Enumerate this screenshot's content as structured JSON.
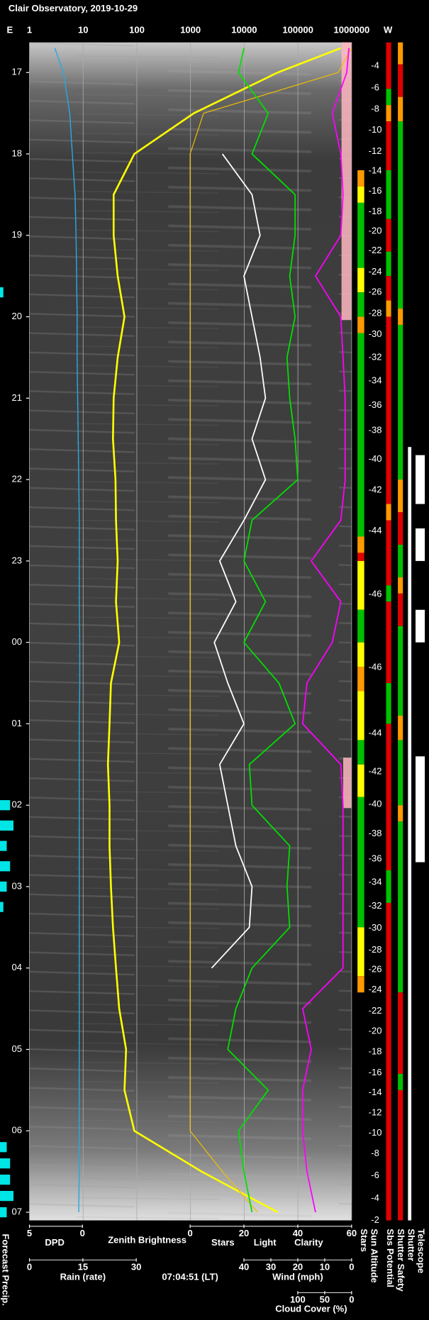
{
  "chart_data": {
    "type": "line",
    "title": "Clair Observatory, 2019-10-29",
    "left_label": "E",
    "right_label": "W",
    "timestamp": "07:04:51 (LT)",
    "xlim": [
      16.63,
      31.1
    ],
    "xticks": [
      17,
      18,
      19,
      {
        "value": 20,
        "label": "20"
      },
      21,
      22,
      23,
      {
        "value": 24,
        "label": "00"
      },
      {
        "value": 25,
        "label": "01"
      },
      {
        "value": 26,
        "label": "02"
      },
      {
        "value": 27,
        "label": "03"
      },
      {
        "value": 28,
        "label": "04"
      },
      {
        "value": 29,
        "label": "05"
      },
      {
        "value": 30,
        "label": "06"
      },
      {
        "value": 31,
        "label": "07"
      }
    ],
    "grid": true,
    "axes": [
      {
        "log": true,
        "lim": [
          1,
          1000000
        ],
        "ticks": [
          1,
          10,
          100,
          1000,
          10000,
          100000,
          1000000
        ]
      },
      {
        "lim": [
          5,
          0
        ],
        "ticks": [
          5,
          0
        ]
      },
      {
        "lim": [
          0,
          60
        ],
        "ticks": [
          0,
          20,
          40,
          60
        ]
      },
      {
        "label": "Rain (rate)",
        "color": "#29a8e0",
        "lim": [
          0,
          30
        ],
        "ticks": [
          0,
          15,
          30
        ]
      },
      {
        "label": "Wind (mph)",
        "color": "#ff9fb0",
        "lim": [
          40,
          0
        ],
        "ticks": [
          40,
          30,
          20,
          10,
          0
        ]
      },
      {
        "lim": [
          100,
          0
        ],
        "ticks": [
          100,
          50,
          0
        ]
      }
    ],
    "x": [
      16.7,
      17,
      17.5,
      18,
      18.5,
      19,
      19.5,
      20,
      20.5,
      21,
      21.5,
      22,
      22.5,
      23,
      23.5,
      24,
      24.5,
      25,
      25.5,
      26,
      26.5,
      27,
      27.5,
      28,
      28.5,
      29,
      29.5,
      30,
      30.5,
      31
    ],
    "series": [
      {
        "name": "DPD",
        "color": "#29a8e0",
        "axis": 1,
        "values": [
          2.6,
          1.8,
          1.2,
          0.95,
          0.7,
          0.6,
          0.55,
          0.5,
          0.5,
          0.45,
          0.4,
          0.35,
          0.3,
          0.3,
          0.3,
          0.25,
          0.25,
          0.3,
          0.3,
          0.3,
          0.3,
          0.3,
          0.3,
          0.3,
          0.3,
          0.3,
          0.3,
          0.3,
          0.3,
          0.35
        ]
      },
      {
        "name": "Zenith Brightness",
        "color": "#ffff00",
        "axis": 0,
        "values": [
          630000,
          42000,
          1150,
          90,
          37,
          37,
          44,
          59,
          44,
          37,
          36,
          40,
          41,
          44,
          41,
          47,
          33,
          31,
          29,
          31,
          31,
          33,
          36,
          41,
          47,
          63,
          59,
          90,
          1600,
          42000
        ]
      },
      {
        "name": "Stars",
        "color": "#ffffff",
        "axis": 2,
        "values": [
          null,
          null,
          null,
          12,
          23,
          26,
          20,
          23,
          26,
          28,
          23,
          28,
          20,
          11,
          17,
          9,
          14,
          20,
          11,
          14,
          17,
          23,
          22,
          8,
          null,
          null,
          null,
          null,
          null,
          null
        ]
      },
      {
        "name": "Light",
        "color": "#f0c000",
        "axis": 2,
        "values": [
          60,
          55,
          5,
          0,
          0,
          0,
          0,
          0,
          0,
          0,
          0,
          0,
          0,
          0,
          0,
          0,
          0,
          0,
          0,
          0,
          0,
          0,
          0,
          0,
          0,
          0,
          0,
          0,
          12,
          25
        ]
      },
      {
        "name": "Clarity",
        "color": "#00e000",
        "axis": 2,
        "values": [
          20,
          18,
          29,
          23,
          39,
          39,
          37,
          39,
          36,
          37,
          39,
          40,
          23,
          20,
          28,
          20,
          33,
          39,
          22,
          23,
          37,
          36,
          37,
          23,
          17,
          14,
          29,
          18,
          20,
          23
        ]
      },
      {
        "name": "Cloud Cover (%)",
        "color": "#ff00ff",
        "axis": 5,
        "values": [
          5,
          9,
          36,
          20,
          16,
          20,
          67,
          20,
          16,
          12,
          12,
          12,
          20,
          75,
          20,
          36,
          83,
          91,
          20,
          16,
          16,
          16,
          16,
          16,
          91,
          75,
          91,
          91,
          83,
          67
        ]
      }
    ],
    "precip": {
      "name": "Forecast Precip.",
      "color": "#00e5e5",
      "lim": [
        0,
        4
      ],
      "x": [
        19.7,
        26,
        26.25,
        26.5,
        26.75,
        27,
        27.25,
        30.2,
        30.4,
        30.6,
        30.8,
        31
      ],
      "values": [
        1,
        3,
        4,
        2,
        3,
        2,
        1,
        2,
        3,
        3,
        4,
        2
      ]
    },
    "sun_altitude": {
      "name": "Sun Altitude",
      "x": [
        16.92,
        17.19,
        17.45,
        17.71,
        17.97,
        18.21,
        18.46,
        18.71,
        18.95,
        19.19,
        19.45,
        19.7,
        19.96,
        20.22,
        20.5,
        20.79,
        21.09,
        21.4,
        21.75,
        22.13,
        22.63,
        23.41,
        24.31,
        25.12,
        25.59,
        25.99,
        26.35,
        26.66,
        26.95,
        27.24,
        27.51,
        27.78,
        28.02,
        28.27,
        28.53,
        28.78,
        29.03,
        29.29,
        29.53,
        29.78,
        30.03,
        30.28,
        30.55,
        30.83,
        31.1
      ],
      "values": [
        -4,
        -6,
        -8,
        -10,
        -12,
        -14,
        -16,
        -18,
        -20,
        -22,
        -24,
        -26,
        -28,
        -30,
        -32,
        -34,
        -36,
        -38,
        -40,
        -42,
        -44,
        -46,
        -46,
        -44,
        -42,
        -40,
        -38,
        -36,
        -34,
        -32,
        -30,
        -28,
        -26,
        -24,
        -22,
        -20,
        -18,
        -16,
        -14,
        -12,
        -10,
        -8,
        -6,
        -4,
        -2
      ]
    },
    "strips": [
      {
        "name": "Stars",
        "x": [
          18.2,
          18.4,
          18.6,
          19.4,
          19.7,
          20.0,
          20.2,
          22.7,
          22.9,
          23.0,
          23.6,
          24.0,
          24.3,
          24.6,
          25.2,
          25.5,
          25.9,
          27.5,
          28.1,
          28.3
        ],
        "colors": [
          "#ff9900",
          "#ffff00",
          "#00c000",
          "#ffff00",
          "#00c000",
          "#ff9900",
          "#00c000",
          "#ff9900",
          "#e00000",
          "#ffff00",
          "#00c000",
          "#ffff00",
          "#ff9900",
          "#ffff00",
          "#00c000",
          "#ffff00",
          "#00c000",
          "#ffff00",
          "#ff9900"
        ]
      },
      {
        "name": "Sbs Potential",
        "x": [
          16.63,
          17.2,
          17.4,
          17.6,
          18.2,
          18.8,
          19.2,
          19.5,
          19.8,
          20.0,
          22.3,
          22.5,
          23.3,
          23.5,
          24.5,
          25.0,
          26.8,
          27.2,
          31.1
        ],
        "colors": [
          "#e00000",
          "#00c000",
          "#ff9900",
          "#e00000",
          "#00c000",
          "#e00000",
          "#00c000",
          "#e00000",
          "#ff9900",
          "#e00000",
          "#ff9900",
          "#e00000",
          "#00c000",
          "#e00000",
          "#00c000",
          "#e00000",
          "#00c000",
          "#e00000"
        ]
      },
      {
        "name": "Shutter Safety",
        "x": [
          16.63,
          16.9,
          17.3,
          17.6,
          19.9,
          20.1,
          22.0,
          22.4,
          22.8,
          23.2,
          23.4,
          23.8,
          24.9,
          25.2,
          26.0,
          26.2,
          28.3,
          29.3,
          29.5,
          31.1
        ],
        "colors": [
          "#ff9900",
          "#e00000",
          "#ff9900",
          "#00c000",
          "#ff9900",
          "#00c000",
          "#ff9900",
          "#e00000",
          "#00c000",
          "#ff9900",
          "#e00000",
          "#00c000",
          "#ff9900",
          "#00c000",
          "#ff9900",
          "#00c000",
          "#e00000",
          "#00c000",
          "#e00000"
        ]
      },
      {
        "name": "Shutter",
        "x": [
          21.6,
          31.1
        ],
        "colors": [
          "#ffffff"
        ]
      },
      {
        "name": "Telescope",
        "x": [
          21.7,
          22.3,
          22.6,
          23.0,
          23.6,
          24.0,
          25.4,
          26.7
        ],
        "colors": [
          "#ffffff",
          null,
          "#ffffff",
          null,
          "#ffffff",
          null,
          "#ffffff"
        ]
      }
    ]
  }
}
